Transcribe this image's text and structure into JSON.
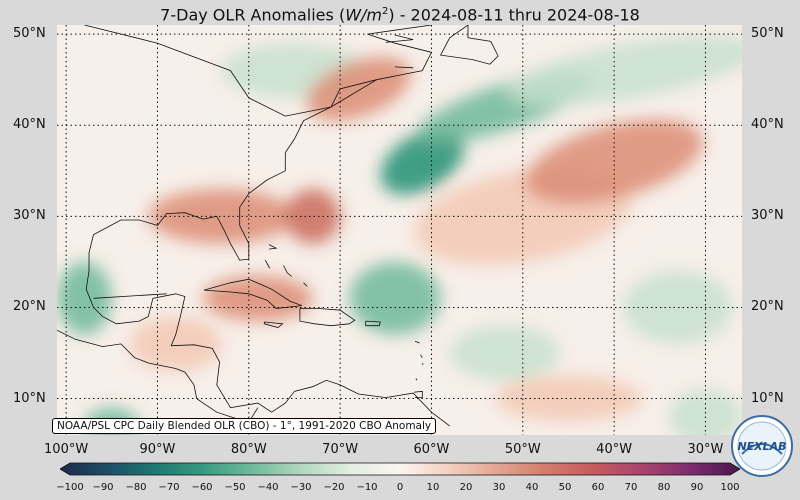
{
  "title": {
    "prefix": "7-Day OLR Anomalies (",
    "unit_base": "W/m",
    "unit_exp": "2",
    "suffix": ") - 2024-08-11 thru 2024-08-18"
  },
  "map": {
    "lat_labels": [
      "50°N",
      "40°N",
      "30°N",
      "20°N",
      "10°N"
    ],
    "lon_labels": [
      "100°W",
      "90°W",
      "80°W",
      "70°W",
      "60°W",
      "50°W",
      "40°W",
      "30°W"
    ],
    "lat_values": [
      50,
      40,
      30,
      20,
      10
    ],
    "lon_values": [
      -100,
      -90,
      -80,
      -70,
      -60,
      -50,
      -40,
      -30
    ],
    "extent": {
      "lon_min": -101,
      "lon_max": -26,
      "lat_min": 6,
      "lat_max": 51
    },
    "source_text": "NOAA/PSL CPC Daily Blended OLR (CBO) - 1°, 1991-2020 CBO Anomaly",
    "colors": {
      "negative_strong": "#1f8f73",
      "negative_mid": "#6fb89a",
      "negative_light": "#c7e0cc",
      "neutral": "#f7efe9",
      "positive_light": "#f2c8b4",
      "positive_mid": "#dc8c74",
      "positive_strong": "#c96a5a"
    },
    "anomaly_blobs": [
      {
        "lon": -61,
        "lat": 36,
        "rx": 5,
        "ry": 3,
        "rot": -30,
        "color": "negative_strong"
      },
      {
        "lon": -52,
        "lat": 42,
        "rx": 10,
        "ry": 2.5,
        "rot": -18,
        "color": "negative_mid"
      },
      {
        "lon": -38,
        "lat": 46,
        "rx": 14,
        "ry": 3,
        "rot": -10,
        "color": "negative_light"
      },
      {
        "lon": -64,
        "lat": 21,
        "rx": 5,
        "ry": 4,
        "rot": 0,
        "color": "negative_mid"
      },
      {
        "lon": -98,
        "lat": 21,
        "rx": 3,
        "ry": 4,
        "rot": 0,
        "color": "negative_mid"
      },
      {
        "lon": -95,
        "lat": 7,
        "rx": 3,
        "ry": 2,
        "rot": 0,
        "color": "negative_mid"
      },
      {
        "lon": -75,
        "lat": 46,
        "rx": 8,
        "ry": 3,
        "rot": 0,
        "color": "negative_light"
      },
      {
        "lon": -33,
        "lat": 20,
        "rx": 6,
        "ry": 4,
        "rot": 0,
        "color": "negative_light"
      },
      {
        "lon": -30,
        "lat": 8,
        "rx": 4,
        "ry": 3,
        "rot": 0,
        "color": "negative_light"
      },
      {
        "lon": -52,
        "lat": 15,
        "rx": 6,
        "ry": 3,
        "rot": 0,
        "color": "negative_light"
      },
      {
        "lon": -83,
        "lat": 30,
        "rx": 8,
        "ry": 3,
        "rot": 0,
        "color": "positive_mid"
      },
      {
        "lon": -79,
        "lat": 21,
        "rx": 6,
        "ry": 2.5,
        "rot": 0,
        "color": "positive_mid"
      },
      {
        "lon": -50,
        "lat": 30,
        "rx": 12,
        "ry": 5,
        "rot": -10,
        "color": "positive_light"
      },
      {
        "lon": -40,
        "lat": 36,
        "rx": 10,
        "ry": 4,
        "rot": -15,
        "color": "positive_mid"
      },
      {
        "lon": -68,
        "lat": 44,
        "rx": 6,
        "ry": 3,
        "rot": -20,
        "color": "positive_mid"
      },
      {
        "lon": -88,
        "lat": 16,
        "rx": 5,
        "ry": 3,
        "rot": 0,
        "color": "positive_light"
      },
      {
        "lon": -73,
        "lat": 30,
        "rx": 3,
        "ry": 3,
        "rot": 0,
        "color": "positive_strong"
      },
      {
        "lon": -45,
        "lat": 10,
        "rx": 8,
        "ry": 2.5,
        "rot": 0,
        "color": "positive_light"
      }
    ]
  },
  "colorbar": {
    "ticks": [
      "−100",
      "−90",
      "−80",
      "−70",
      "−60",
      "−50",
      "−40",
      "−30",
      "−20",
      "−10",
      "0",
      "10",
      "20",
      "30",
      "40",
      "50",
      "60",
      "70",
      "80",
      "90",
      "100"
    ],
    "stops": [
      "#1c2b4a",
      "#1f4f66",
      "#1f7a72",
      "#3a9c82",
      "#72bb9e",
      "#b4d8bf",
      "#e3eee2",
      "#fbf5f0",
      "#f2d0c0",
      "#e3a592",
      "#d27c6c",
      "#c55a5e",
      "#a8456e",
      "#7d2b6e",
      "#4a1848"
    ]
  }
}
